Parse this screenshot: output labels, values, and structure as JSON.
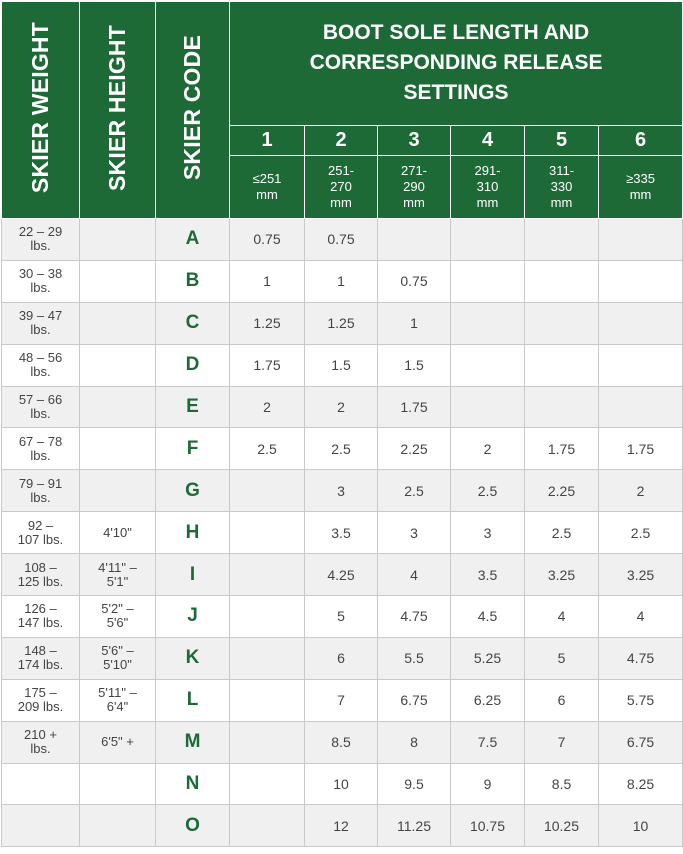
{
  "headers": {
    "skier_weight": "SKIER WEIGHT",
    "skier_height": "SKIER HEIGHT",
    "skier_code": "SKIER CODE",
    "title": "BOOT SOLE LENGTH AND CORRESPONDING RELEASE SETTINGS",
    "column_numbers": [
      "1",
      "2",
      "3",
      "4",
      "5",
      "6"
    ],
    "column_ranges": [
      "≤251\nmm",
      "251-\n270\nmm",
      "271-\n290\nmm",
      "291-\n310\nmm",
      "311-\n330\nmm",
      "≥335\nmm"
    ]
  },
  "rows": [
    {
      "weight": "22 – 29\nlbs.",
      "height": "",
      "code": "A",
      "values": [
        "0.75",
        "0.75",
        "",
        "",
        "",
        ""
      ]
    },
    {
      "weight": "30 – 38\nlbs.",
      "height": "",
      "code": "B",
      "values": [
        "1",
        "1",
        "0.75",
        "",
        "",
        ""
      ]
    },
    {
      "weight": "39 – 47\nlbs.",
      "height": "",
      "code": "C",
      "values": [
        "1.25",
        "1.25",
        "1",
        "",
        "",
        ""
      ]
    },
    {
      "weight": "48 – 56\nlbs.",
      "height": "",
      "code": "D",
      "values": [
        "1.75",
        "1.5",
        "1.5",
        "",
        "",
        ""
      ]
    },
    {
      "weight": "57 – 66\nlbs.",
      "height": "",
      "code": "E",
      "values": [
        "2",
        "2",
        "1.75",
        "",
        "",
        ""
      ]
    },
    {
      "weight": "67 – 78\nlbs.",
      "height": "",
      "code": "F",
      "values": [
        "2.5",
        "2.5",
        "2.25",
        "2",
        "1.75",
        "1.75"
      ]
    },
    {
      "weight": "79 – 91\nlbs.",
      "height": "",
      "code": "G",
      "values": [
        "",
        "3",
        "2.5",
        "2.5",
        "2.25",
        "2"
      ]
    },
    {
      "weight": "92 –\n107 lbs.",
      "height": "4'10\"",
      "code": "H",
      "values": [
        "",
        "3.5",
        "3",
        "3",
        "2.5",
        "2.5"
      ]
    },
    {
      "weight": "108 –\n125 lbs.",
      "height": "4'11\" –\n5'1\"",
      "code": "I",
      "values": [
        "",
        "4.25",
        "4",
        "3.5",
        "3.25",
        "3.25"
      ]
    },
    {
      "weight": "126 –\n147 lbs.",
      "height": "5'2\" –\n5'6\"",
      "code": "J",
      "values": [
        "",
        "5",
        "4.75",
        "4.5",
        "4",
        "4"
      ]
    },
    {
      "weight": "148 –\n174 lbs.",
      "height": "5'6\" –\n5'10\"",
      "code": "K",
      "values": [
        "",
        "6",
        "5.5",
        "5.25",
        "5",
        "4.75"
      ]
    },
    {
      "weight": "175 –\n209 lbs.",
      "height": "5'11\" –\n6'4\"",
      "code": "L",
      "values": [
        "",
        "7",
        "6.75",
        "6.25",
        "6",
        "5.75"
      ]
    },
    {
      "weight": "210 +\nlbs.",
      "height": "6'5\" +",
      "code": "M",
      "values": [
        "",
        "8.5",
        "8",
        "7.5",
        "7",
        "6.75"
      ]
    },
    {
      "weight": "",
      "height": "",
      "code": "N",
      "values": [
        "",
        "10",
        "9.5",
        "9",
        "8.5",
        "8.25"
      ]
    },
    {
      "weight": "",
      "height": "",
      "code": "O",
      "values": [
        "",
        "12",
        "11.25",
        "10.75",
        "10.25",
        "10"
      ]
    }
  ],
  "colors": {
    "header_green": "#1d6a37",
    "code_green": "#1d6a37",
    "row_alt": "#f0f0f0"
  }
}
